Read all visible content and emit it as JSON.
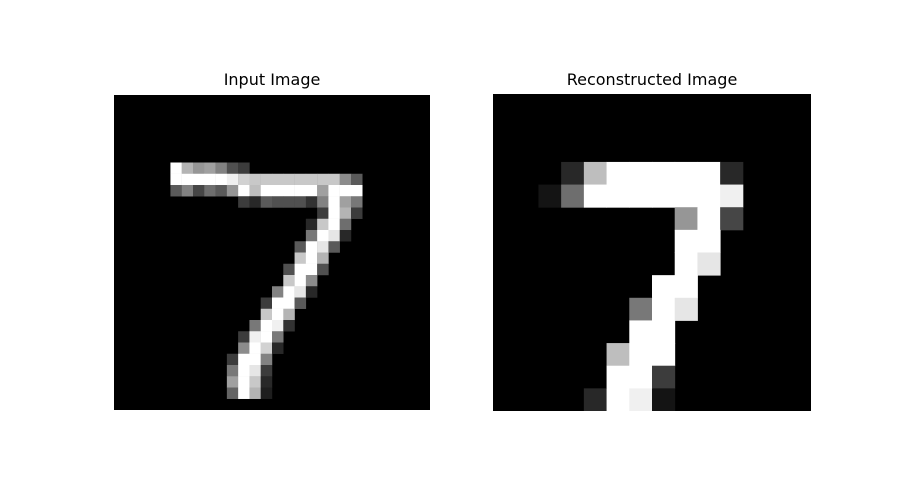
{
  "panels": {
    "left": {
      "title": "Input Image",
      "grid_size": 28,
      "pixels": [
        [
          6,
          5,
          255
        ],
        [
          6,
          6,
          180
        ],
        [
          6,
          7,
          150
        ],
        [
          6,
          8,
          160
        ],
        [
          6,
          9,
          130
        ],
        [
          6,
          10,
          80
        ],
        [
          6,
          11,
          60
        ],
        [
          7,
          5,
          255
        ],
        [
          7,
          6,
          255
        ],
        [
          7,
          7,
          255
        ],
        [
          7,
          8,
          255
        ],
        [
          7,
          9,
          255
        ],
        [
          7,
          10,
          240
        ],
        [
          7,
          11,
          210
        ],
        [
          7,
          12,
          200
        ],
        [
          7,
          13,
          200
        ],
        [
          7,
          14,
          200
        ],
        [
          7,
          15,
          200
        ],
        [
          7,
          16,
          200
        ],
        [
          7,
          17,
          200
        ],
        [
          7,
          18,
          200
        ],
        [
          7,
          19,
          200
        ],
        [
          7,
          20,
          140
        ],
        [
          7,
          21,
          90
        ],
        [
          8,
          5,
          90
        ],
        [
          8,
          6,
          130
        ],
        [
          8,
          7,
          70
        ],
        [
          8,
          8,
          110
        ],
        [
          8,
          9,
          90
        ],
        [
          8,
          10,
          150
        ],
        [
          8,
          11,
          255
        ],
        [
          8,
          12,
          190
        ],
        [
          8,
          13,
          255
        ],
        [
          8,
          14,
          255
        ],
        [
          8,
          15,
          255
        ],
        [
          8,
          16,
          255
        ],
        [
          8,
          17,
          255
        ],
        [
          8,
          18,
          160
        ],
        [
          8,
          19,
          255
        ],
        [
          8,
          20,
          255
        ],
        [
          8,
          21,
          255
        ],
        [
          9,
          11,
          60
        ],
        [
          9,
          12,
          40
        ],
        [
          9,
          13,
          90
        ],
        [
          9,
          14,
          80
        ],
        [
          9,
          15,
          80
        ],
        [
          9,
          16,
          80
        ],
        [
          9,
          17,
          50
        ],
        [
          9,
          18,
          130
        ],
        [
          9,
          19,
          255
        ],
        [
          9,
          20,
          160
        ],
        [
          9,
          21,
          120
        ],
        [
          10,
          18,
          60
        ],
        [
          10,
          19,
          255
        ],
        [
          10,
          20,
          180
        ],
        [
          10,
          21,
          60
        ],
        [
          11,
          17,
          40
        ],
        [
          11,
          18,
          200
        ],
        [
          11,
          19,
          255
        ],
        [
          11,
          20,
          110
        ],
        [
          12,
          17,
          120
        ],
        [
          12,
          18,
          255
        ],
        [
          12,
          19,
          230
        ],
        [
          12,
          20,
          40
        ],
        [
          13,
          16,
          90
        ],
        [
          13,
          17,
          255
        ],
        [
          13,
          18,
          230
        ],
        [
          13,
          19,
          90
        ],
        [
          14,
          16,
          200
        ],
        [
          14,
          17,
          255
        ],
        [
          14,
          18,
          180
        ],
        [
          15,
          15,
          80
        ],
        [
          15,
          16,
          255
        ],
        [
          15,
          17,
          255
        ],
        [
          15,
          18,
          80
        ],
        [
          16,
          15,
          200
        ],
        [
          16,
          16,
          255
        ],
        [
          16,
          17,
          140
        ],
        [
          17,
          14,
          130
        ],
        [
          17,
          15,
          255
        ],
        [
          17,
          16,
          230
        ],
        [
          17,
          17,
          40
        ],
        [
          18,
          13,
          60
        ],
        [
          18,
          14,
          255
        ],
        [
          18,
          15,
          255
        ],
        [
          18,
          16,
          90
        ],
        [
          19,
          13,
          200
        ],
        [
          19,
          14,
          255
        ],
        [
          19,
          15,
          180
        ],
        [
          20,
          12,
          120
        ],
        [
          20,
          13,
          255
        ],
        [
          20,
          14,
          240
        ],
        [
          20,
          15,
          50
        ],
        [
          21,
          11,
          60
        ],
        [
          21,
          12,
          240
        ],
        [
          21,
          13,
          255
        ],
        [
          21,
          14,
          120
        ],
        [
          22,
          11,
          140
        ],
        [
          22,
          12,
          255
        ],
        [
          22,
          13,
          210
        ],
        [
          22,
          14,
          40
        ],
        [
          23,
          10,
          60
        ],
        [
          23,
          11,
          255
        ],
        [
          23,
          12,
          255
        ],
        [
          23,
          13,
          130
        ],
        [
          24,
          10,
          120
        ],
        [
          24,
          11,
          255
        ],
        [
          24,
          12,
          230
        ],
        [
          24,
          13,
          60
        ],
        [
          25,
          10,
          160
        ],
        [
          25,
          11,
          255
        ],
        [
          25,
          12,
          200
        ],
        [
          25,
          13,
          40
        ],
        [
          26,
          10,
          100
        ],
        [
          26,
          11,
          255
        ],
        [
          26,
          12,
          180
        ],
        [
          26,
          13,
          30
        ]
      ]
    },
    "right": {
      "title": "Reconstructed Image",
      "grid_size": 14,
      "pixels": [
        [
          3,
          3,
          40
        ],
        [
          3,
          4,
          190
        ],
        [
          3,
          5,
          255
        ],
        [
          3,
          6,
          255
        ],
        [
          3,
          7,
          255
        ],
        [
          3,
          8,
          255
        ],
        [
          3,
          9,
          255
        ],
        [
          3,
          10,
          40
        ],
        [
          4,
          2,
          20
        ],
        [
          4,
          3,
          110
        ],
        [
          4,
          4,
          255
        ],
        [
          4,
          5,
          255
        ],
        [
          4,
          6,
          255
        ],
        [
          4,
          7,
          255
        ],
        [
          4,
          8,
          255
        ],
        [
          4,
          9,
          255
        ],
        [
          4,
          10,
          240
        ],
        [
          5,
          8,
          150
        ],
        [
          5,
          9,
          255
        ],
        [
          5,
          10,
          70
        ],
        [
          6,
          8,
          255
        ],
        [
          6,
          9,
          255
        ],
        [
          7,
          8,
          255
        ],
        [
          7,
          9,
          230
        ],
        [
          8,
          7,
          255
        ],
        [
          8,
          8,
          255
        ],
        [
          9,
          6,
          120
        ],
        [
          9,
          7,
          255
        ],
        [
          9,
          8,
          230
        ],
        [
          10,
          6,
          255
        ],
        [
          10,
          7,
          255
        ],
        [
          11,
          5,
          190
        ],
        [
          11,
          6,
          255
        ],
        [
          11,
          7,
          255
        ],
        [
          12,
          5,
          255
        ],
        [
          12,
          6,
          255
        ],
        [
          12,
          7,
          60
        ],
        [
          13,
          4,
          40
        ],
        [
          13,
          5,
          255
        ],
        [
          13,
          6,
          240
        ],
        [
          13,
          7,
          20
        ]
      ]
    }
  }
}
